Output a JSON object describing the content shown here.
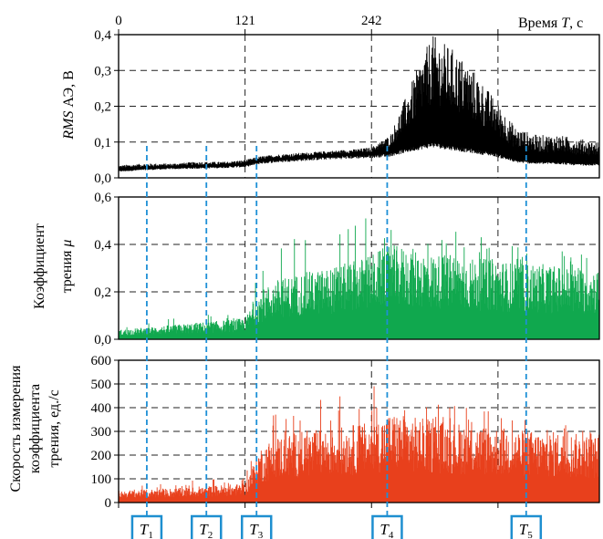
{
  "chart_data": [
    {
      "type": "line",
      "panel": "top",
      "ylabel_italic": "RMS",
      "ylabel_rest": " АЭ, В",
      "xlabel_prefix": "Время ",
      "xlabel_var": "T",
      "xlabel_suffix": ", с",
      "xlim": [
        0,
        460
      ],
      "ylim": [
        0,
        0.4
      ],
      "x_tick_labels": [
        "0",
        "121",
        "242"
      ],
      "x_tick_values": [
        0,
        121,
        242
      ],
      "y_tick_labels": [
        "0,0",
        "0,1",
        "0,2",
        "0,3",
        "0,4"
      ],
      "y_tick_values": [
        0,
        0.1,
        0.2,
        0.3,
        0.4
      ],
      "series_color": "#000000",
      "grid": true,
      "x": [
        0,
        25,
        50,
        75,
        100,
        121,
        135,
        150,
        175,
        200,
        225,
        242,
        260,
        285,
        300,
        320,
        340,
        360,
        380,
        400,
        420,
        440,
        460
      ],
      "y_low": [
        0.02,
        0.025,
        0.028,
        0.03,
        0.032,
        0.035,
        0.045,
        0.05,
        0.055,
        0.06,
        0.063,
        0.065,
        0.07,
        0.09,
        0.1,
        0.09,
        0.08,
        0.07,
        0.05,
        0.045,
        0.045,
        0.04,
        0.04
      ],
      "y_high": [
        0.035,
        0.04,
        0.04,
        0.045,
        0.045,
        0.05,
        0.06,
        0.065,
        0.07,
        0.075,
        0.08,
        0.085,
        0.12,
        0.3,
        0.4,
        0.36,
        0.3,
        0.22,
        0.14,
        0.12,
        0.12,
        0.11,
        0.1
      ]
    },
    {
      "type": "line",
      "panel": "middle",
      "ylabel_line1": "Коэффициент",
      "ylabel_line2_prefix": "трения ",
      "ylabel_line2_var": "μ",
      "xlim": [
        0,
        460
      ],
      "ylim": [
        0,
        0.6
      ],
      "y_tick_labels": [
        "0,0",
        "0,2",
        "0,4",
        "0,6"
      ],
      "y_tick_values": [
        0,
        0.2,
        0.4,
        0.6
      ],
      "series_color": "#10a84e",
      "grid": true,
      "x": [
        0,
        25,
        50,
        75,
        100,
        121,
        135,
        150,
        175,
        200,
        225,
        242,
        260,
        285,
        300,
        320,
        340,
        360,
        380,
        400,
        420,
        440,
        460
      ],
      "y_low": [
        0.0,
        0.0,
        0.0,
        0.0,
        0.0,
        0.0,
        0.0,
        0.0,
        0.0,
        0.0,
        0.0,
        0.0,
        0.0,
        0.0,
        0.0,
        0.0,
        0.0,
        0.0,
        0.0,
        0.0,
        0.0,
        0.0,
        0.0
      ],
      "y_high": [
        0.04,
        0.05,
        0.06,
        0.07,
        0.08,
        0.09,
        0.2,
        0.25,
        0.28,
        0.3,
        0.33,
        0.36,
        0.4,
        0.38,
        0.36,
        0.36,
        0.34,
        0.34,
        0.32,
        0.32,
        0.31,
        0.3,
        0.3
      ],
      "y_spike": [
        0.06,
        0.07,
        0.09,
        0.1,
        0.11,
        0.13,
        0.35,
        0.4,
        0.45,
        0.5,
        0.55,
        0.55,
        0.52,
        0.5,
        0.48,
        0.46,
        0.45,
        0.43,
        0.42,
        0.4,
        0.4,
        0.38,
        0.36
      ]
    },
    {
      "type": "line",
      "panel": "bottom",
      "ylabel_line1": "Скорость измерения",
      "ylabel_line2": "коэффициента",
      "ylabel_line3": "трения, ед./с",
      "xlim": [
        0,
        460
      ],
      "ylim": [
        0,
        600
      ],
      "y_tick_labels": [
        "0",
        "100",
        "200",
        "300",
        "400",
        "500",
        "600"
      ],
      "y_tick_values": [
        0,
        100,
        200,
        300,
        400,
        500,
        600
      ],
      "series_color": "#e8401c",
      "grid": true,
      "x": [
        0,
        25,
        50,
        75,
        100,
        121,
        135,
        150,
        175,
        200,
        225,
        242,
        260,
        285,
        300,
        320,
        340,
        360,
        380,
        400,
        420,
        440,
        460
      ],
      "y_low": [
        0,
        0,
        0,
        0,
        0,
        0,
        0,
        0,
        0,
        0,
        0,
        0,
        0,
        0,
        0,
        0,
        0,
        0,
        0,
        0,
        0,
        0,
        0
      ],
      "y_high": [
        50,
        55,
        60,
        65,
        75,
        80,
        230,
        280,
        300,
        310,
        330,
        340,
        380,
        360,
        350,
        340,
        330,
        320,
        310,
        300,
        300,
        290,
        280
      ],
      "y_spike": [
        70,
        75,
        85,
        95,
        100,
        110,
        320,
        380,
        420,
        450,
        500,
        520,
        460,
        440,
        420,
        410,
        400,
        380,
        370,
        360,
        350,
        340,
        330
      ]
    }
  ],
  "markers": [
    {
      "var": "T",
      "sub": "1",
      "x": 27
    },
    {
      "var": "T",
      "sub": "2",
      "x": 84
    },
    {
      "var": "T",
      "sub": "3",
      "x": 132
    },
    {
      "var": "T",
      "sub": "4",
      "x": 257
    },
    {
      "var": "T",
      "sub": "5",
      "x": 390
    }
  ],
  "colors": {
    "marker_line": "#1e90d6",
    "marker_box": "#1e8fd0",
    "grid": "#000000"
  }
}
